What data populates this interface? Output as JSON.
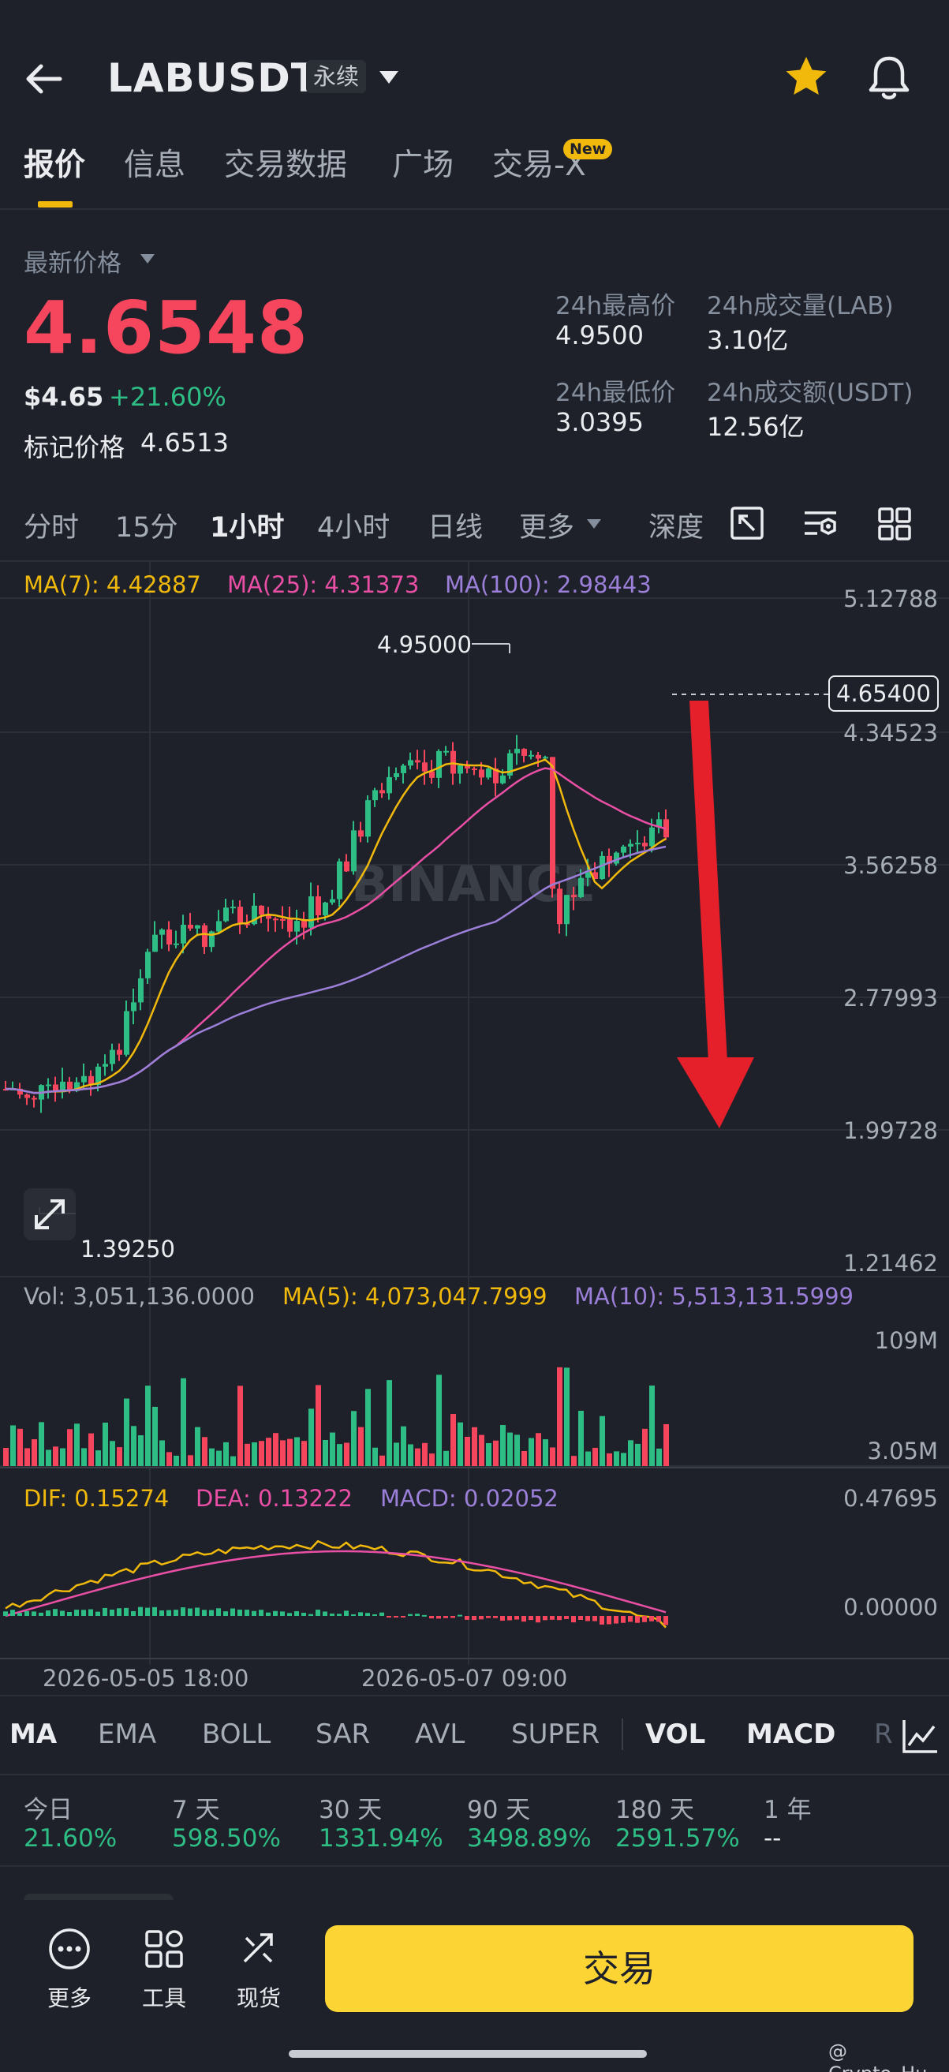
{
  "header": {
    "title": "LABUSDT",
    "contract_type": "永续"
  },
  "tabs": [
    {
      "label": "报价",
      "active": true
    },
    {
      "label": "信息",
      "active": false
    },
    {
      "label": "交易数据",
      "active": false
    },
    {
      "label": "广场",
      "active": false
    },
    {
      "label": "交易-X",
      "active": false
    }
  ],
  "new_badge": "New",
  "price": {
    "label": "最新价格",
    "last": "4.6548",
    "usd": "$4.65",
    "change": "+21.60%",
    "mark_label": "标记价格",
    "mark": "4.6513"
  },
  "stats": {
    "high_label": "24h最高价",
    "high": "4.9500",
    "vol_label": "24h成交量(LAB)",
    "vol": "3.10亿",
    "low_label": "24h最低价",
    "low": "3.0395",
    "turnover_label": "24h成交额(USDT)",
    "turnover": "12.56亿"
  },
  "timeframes": [
    {
      "label": "分时",
      "active": false
    },
    {
      "label": "15分",
      "active": false
    },
    {
      "label": "1小时",
      "active": true
    },
    {
      "label": "4小时",
      "active": false
    },
    {
      "label": "日线",
      "active": false
    },
    {
      "label": "更多",
      "active": false
    }
  ],
  "depth_label": "深度",
  "price_ma": {
    "ma7": "MA(7): 4.42887",
    "ma25": "MA(25): 4.31373",
    "ma100": "MA(100): 2.98443"
  },
  "price_axis": [
    "5.12788",
    "4.34523",
    "3.56258",
    "2.77993",
    "1.99728",
    "1.21462"
  ],
  "current_price_tag": "4.65400",
  "high_marker": "4.95000",
  "low_marker": "1.39250",
  "watermark": "BINANCE",
  "volume": {
    "vol": "Vol: 3,051,136.0000",
    "ma5": "MA(5): 4,073,047.7999",
    "ma10": "MA(10): 5,513,131.5999",
    "axis_top": "109M",
    "axis_bottom": "3.05M"
  },
  "macd": {
    "dif": "DIF: 0.15274",
    "dea": "DEA: 0.13222",
    "macd": "MACD: 0.02052",
    "axis_top": "0.47695",
    "axis_zero": "0.00000"
  },
  "time_axis": [
    "2026-05-05 18:00",
    "2026-05-07 09:00"
  ],
  "indicators": [
    {
      "label": "MA",
      "active": true
    },
    {
      "label": "EMA",
      "active": false
    },
    {
      "label": "BOLL",
      "active": false
    },
    {
      "label": "SAR",
      "active": false
    },
    {
      "label": "AVL",
      "active": false
    },
    {
      "label": "SUPER",
      "active": false
    },
    {
      "label": "VOL",
      "active": true
    },
    {
      "label": "MACD",
      "active": true
    },
    {
      "label": "R",
      "active": false
    }
  ],
  "performance": [
    {
      "label": "今日",
      "value": "21.60%"
    },
    {
      "label": "7 天",
      "value": "598.50%"
    },
    {
      "label": "30 天",
      "value": "1331.94%"
    },
    {
      "label": "90 天",
      "value": "3498.89%"
    },
    {
      "label": "180 天",
      "value": "2591.57%"
    },
    {
      "label": "1 年",
      "value": "--"
    }
  ],
  "bottom_nav": {
    "more": "更多",
    "tools": "工具",
    "spot": "现货",
    "trade": "交易"
  },
  "watermark_credit": "@ Crypto_Hu",
  "colors": {
    "bg": "#1e2129",
    "up": "#2ebd85",
    "down": "#f6465d",
    "ma7": "#f0b90b",
    "ma25": "#e84fa5",
    "ma100": "#9b7fd9",
    "accent": "#fcd535"
  }
}
